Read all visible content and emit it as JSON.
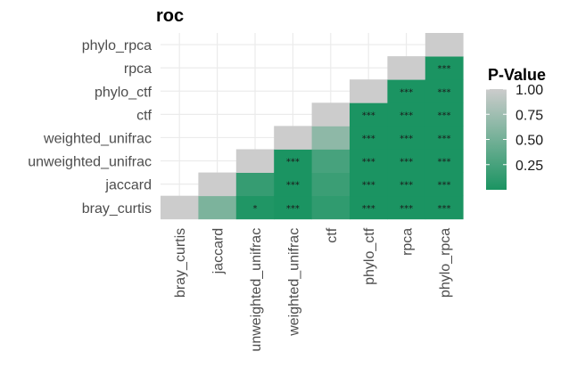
{
  "chart_data": {
    "type": "heatmap",
    "title": "roc",
    "x_labels": [
      "bray_curtis",
      "jaccard",
      "unweighted_unifrac",
      "weighted_unifrac",
      "ctf",
      "phylo_ctf",
      "rpca",
      "phylo_rpca"
    ],
    "y_labels": [
      "bray_curtis",
      "jaccard",
      "unweighted_unifrac",
      "weighted_unifrac",
      "ctf",
      "phylo_ctf",
      "rpca",
      "phylo_rpca"
    ],
    "cells": [
      {
        "x": "bray_curtis",
        "y": "bray_curtis",
        "p": 1.0,
        "label": ""
      },
      {
        "x": "jaccard",
        "y": "bray_curtis",
        "p": 0.55,
        "label": ""
      },
      {
        "x": "jaccard",
        "y": "jaccard",
        "p": 1.0,
        "label": ""
      },
      {
        "x": "unweighted_unifrac",
        "y": "bray_curtis",
        "p": 0.03,
        "label": "*"
      },
      {
        "x": "unweighted_unifrac",
        "y": "jaccard",
        "p": 0.15,
        "label": ""
      },
      {
        "x": "unweighted_unifrac",
        "y": "unweighted_unifrac",
        "p": 1.0,
        "label": ""
      },
      {
        "x": "weighted_unifrac",
        "y": "bray_curtis",
        "p": 0.0005,
        "label": "***"
      },
      {
        "x": "weighted_unifrac",
        "y": "jaccard",
        "p": 0.0005,
        "label": "***"
      },
      {
        "x": "weighted_unifrac",
        "y": "unweighted_unifrac",
        "p": 0.0005,
        "label": "***"
      },
      {
        "x": "weighted_unifrac",
        "y": "weighted_unifrac",
        "p": 1.0,
        "label": ""
      },
      {
        "x": "ctf",
        "y": "bray_curtis",
        "p": 0.12,
        "label": ""
      },
      {
        "x": "ctf",
        "y": "jaccard",
        "p": 0.18,
        "label": ""
      },
      {
        "x": "ctf",
        "y": "unweighted_unifrac",
        "p": 0.25,
        "label": ""
      },
      {
        "x": "ctf",
        "y": "weighted_unifrac",
        "p": 0.65,
        "label": ""
      },
      {
        "x": "ctf",
        "y": "ctf",
        "p": 1.0,
        "label": ""
      },
      {
        "x": "phylo_ctf",
        "y": "bray_curtis",
        "p": 0.0005,
        "label": "***"
      },
      {
        "x": "phylo_ctf",
        "y": "jaccard",
        "p": 0.0005,
        "label": "***"
      },
      {
        "x": "phylo_ctf",
        "y": "unweighted_unifrac",
        "p": 0.0005,
        "label": "***"
      },
      {
        "x": "phylo_ctf",
        "y": "weighted_unifrac",
        "p": 0.0005,
        "label": "***"
      },
      {
        "x": "phylo_ctf",
        "y": "ctf",
        "p": 0.0005,
        "label": "***"
      },
      {
        "x": "phylo_ctf",
        "y": "phylo_ctf",
        "p": 1.0,
        "label": ""
      },
      {
        "x": "rpca",
        "y": "bray_curtis",
        "p": 0.0005,
        "label": "***"
      },
      {
        "x": "rpca",
        "y": "jaccard",
        "p": 0.0005,
        "label": "***"
      },
      {
        "x": "rpca",
        "y": "unweighted_unifrac",
        "p": 0.0005,
        "label": "***"
      },
      {
        "x": "rpca",
        "y": "weighted_unifrac",
        "p": 0.0005,
        "label": "***"
      },
      {
        "x": "rpca",
        "y": "ctf",
        "p": 0.0005,
        "label": "***"
      },
      {
        "x": "rpca",
        "y": "phylo_ctf",
        "p": 0.0005,
        "label": "***"
      },
      {
        "x": "rpca",
        "y": "rpca",
        "p": 1.0,
        "label": ""
      },
      {
        "x": "phylo_rpca",
        "y": "bray_curtis",
        "p": 0.0005,
        "label": "***"
      },
      {
        "x": "phylo_rpca",
        "y": "jaccard",
        "p": 0.0005,
        "label": "***"
      },
      {
        "x": "phylo_rpca",
        "y": "unweighted_unifrac",
        "p": 0.0005,
        "label": "***"
      },
      {
        "x": "phylo_rpca",
        "y": "weighted_unifrac",
        "p": 0.0005,
        "label": "***"
      },
      {
        "x": "phylo_rpca",
        "y": "ctf",
        "p": 0.0005,
        "label": "***"
      },
      {
        "x": "phylo_rpca",
        "y": "phylo_ctf",
        "p": 0.0005,
        "label": "***"
      },
      {
        "x": "phylo_rpca",
        "y": "rpca",
        "p": 0.0005,
        "label": "***"
      },
      {
        "x": "phylo_rpca",
        "y": "phylo_rpca",
        "p": 1.0,
        "label": ""
      }
    ],
    "legend": {
      "title": "P-Value",
      "ticks": [
        "1.00",
        "0.75",
        "0.50",
        "0.25"
      ],
      "tick_values": [
        1.0,
        0.75,
        0.5,
        0.25
      ],
      "range": [
        0,
        1
      ],
      "low_color": "#1b9462",
      "high_color": "#cccccc",
      "placement": "right"
    },
    "grid": true
  }
}
